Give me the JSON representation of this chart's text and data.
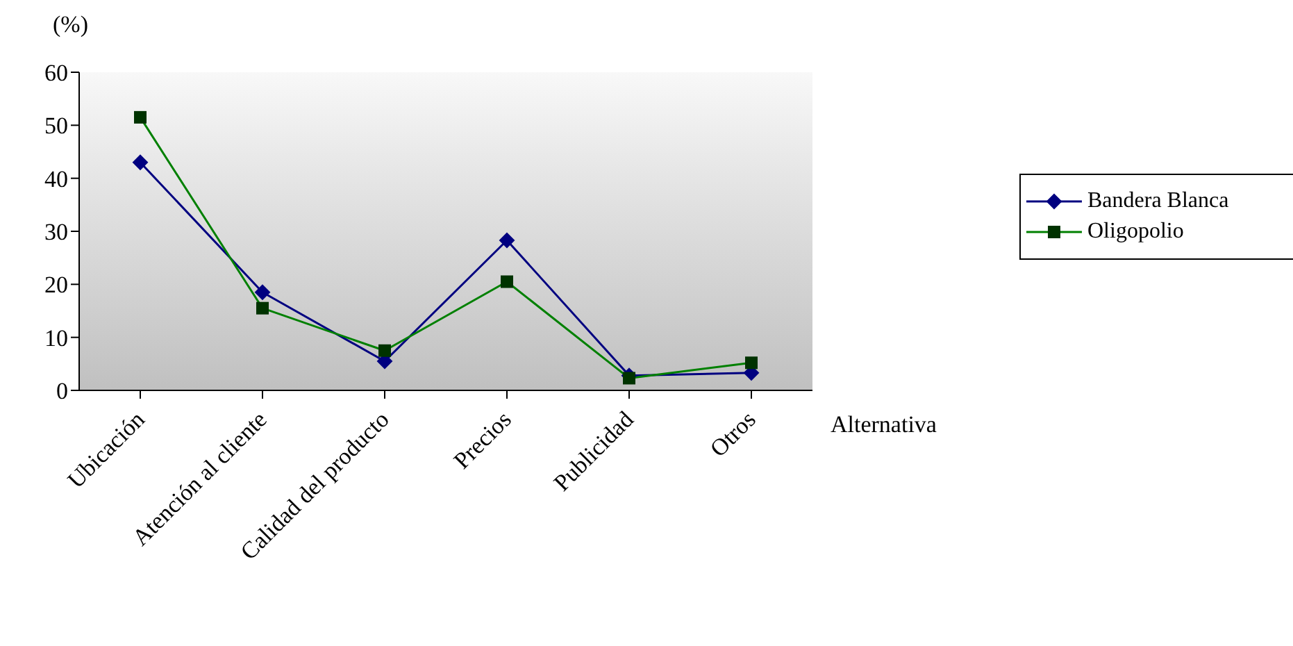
{
  "chart_data": {
    "type": "line",
    "ylabel": "(%)",
    "xlabel": "Alternativa",
    "categories": [
      "Ubicación",
      "Atención al cliente",
      "Calidad del producto",
      "Precios",
      "Publicidad",
      "Otros"
    ],
    "series": [
      {
        "name": "Bandera Blanca",
        "color": "#000080",
        "marker": "diamond",
        "values": [
          43,
          18.5,
          5.5,
          28.3,
          2.8,
          3.3
        ]
      },
      {
        "name": "Oligopolio",
        "color": "#008000",
        "marker": "square",
        "values": [
          51.5,
          15.5,
          7.5,
          20.5,
          2.3,
          5.2
        ]
      }
    ],
    "ylim": [
      0,
      60
    ],
    "yticks": [
      0,
      10,
      20,
      30,
      40,
      50,
      60
    ],
    "legend": "right"
  }
}
